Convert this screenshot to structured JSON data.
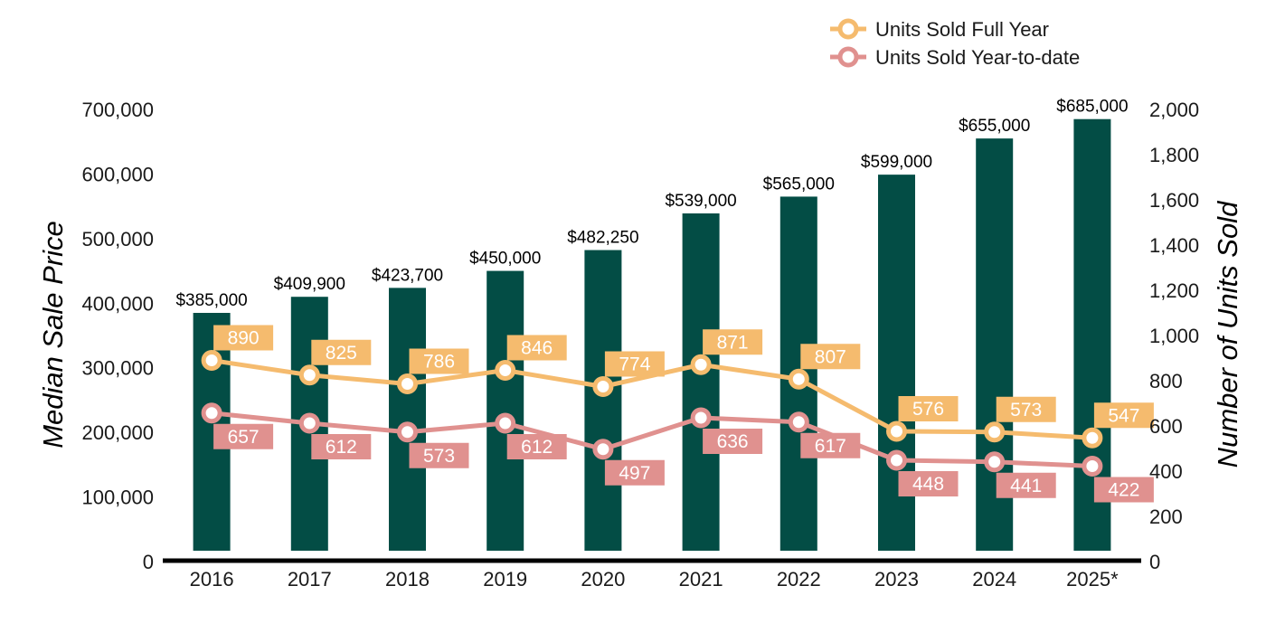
{
  "chart_data": {
    "type": "bar",
    "categories": [
      "2016",
      "2017",
      "2018",
      "2019",
      "2020",
      "2021",
      "2022",
      "2023",
      "2024",
      "2025*"
    ],
    "ylabel": "Median Sale Price",
    "y2label": "Number of Units Sold",
    "ylim": [
      0,
      700000
    ],
    "y2lim": [
      0,
      2000
    ],
    "yticks": [
      "0",
      "100,000",
      "200,000",
      "300,000",
      "400,000",
      "500,000",
      "600,000",
      "700,000"
    ],
    "y2ticks": [
      "0",
      "200",
      "400",
      "600",
      "800",
      "1,000",
      "1,200",
      "1,400",
      "1,600",
      "1,800",
      "2,000"
    ],
    "legend_position": "top-right",
    "bars": {
      "axis": "left",
      "color": "#034d45",
      "values": [
        385000,
        409900,
        423700,
        450000,
        482250,
        539000,
        565000,
        599000,
        655000,
        685000
      ],
      "labels": [
        "$385,000",
        "$409,900",
        "$423,700",
        "$450,000",
        "$482,250",
        "$539,000",
        "$565,000",
        "$599,000",
        "$655,000",
        "$685,000"
      ]
    },
    "series": [
      {
        "name": "Units Sold Full Year",
        "type": "line",
        "axis": "right",
        "color": "#f5bb6e",
        "values": [
          890,
          825,
          786,
          846,
          774,
          871,
          807,
          576,
          573,
          547
        ],
        "labels": [
          "890",
          "825",
          "786",
          "846",
          "774",
          "871",
          "807",
          "576",
          "573",
          "547"
        ],
        "label_position": "above"
      },
      {
        "name": "Units Sold Year-to-date",
        "type": "line",
        "axis": "right",
        "color": "#e0918f",
        "values": [
          657,
          612,
          573,
          612,
          497,
          636,
          617,
          448,
          441,
          422
        ],
        "labels": [
          "657",
          "612",
          "573",
          "612",
          "497",
          "636",
          "617",
          "448",
          "441",
          "422"
        ],
        "label_position": "below"
      }
    ]
  }
}
